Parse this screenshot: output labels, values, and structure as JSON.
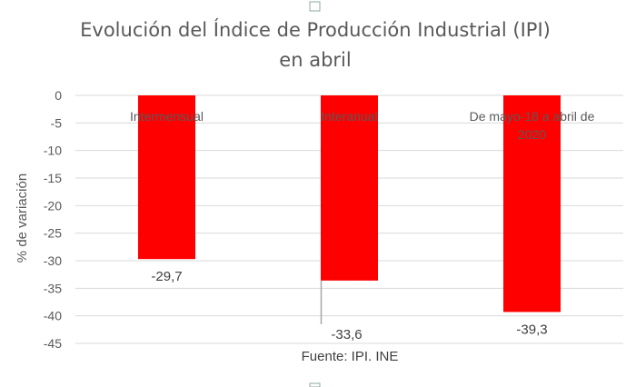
{
  "chart_data": {
    "type": "bar",
    "title_lines": [
      "Evolución del Índice de Producción Industrial (IPI)",
      "en abril"
    ],
    "ylabel": "% de variación",
    "xlabel": "",
    "categories": [
      [
        "Intermensual"
      ],
      [
        "Interanual"
      ],
      [
        "De mayo-18 a abril de",
        "2020"
      ]
    ],
    "values": [
      -29.7,
      -33.6,
      -39.3
    ],
    "data_labels": [
      "-29,7",
      "-33,6",
      "-39,3"
    ],
    "ylim": [
      -45,
      0
    ],
    "yticks": [
      0,
      -5,
      -10,
      -15,
      -20,
      -25,
      -30,
      -35,
      -40,
      -45
    ],
    "grid": true,
    "bar_color": "#ff0000",
    "source": "Fuente: IPI. INE"
  }
}
